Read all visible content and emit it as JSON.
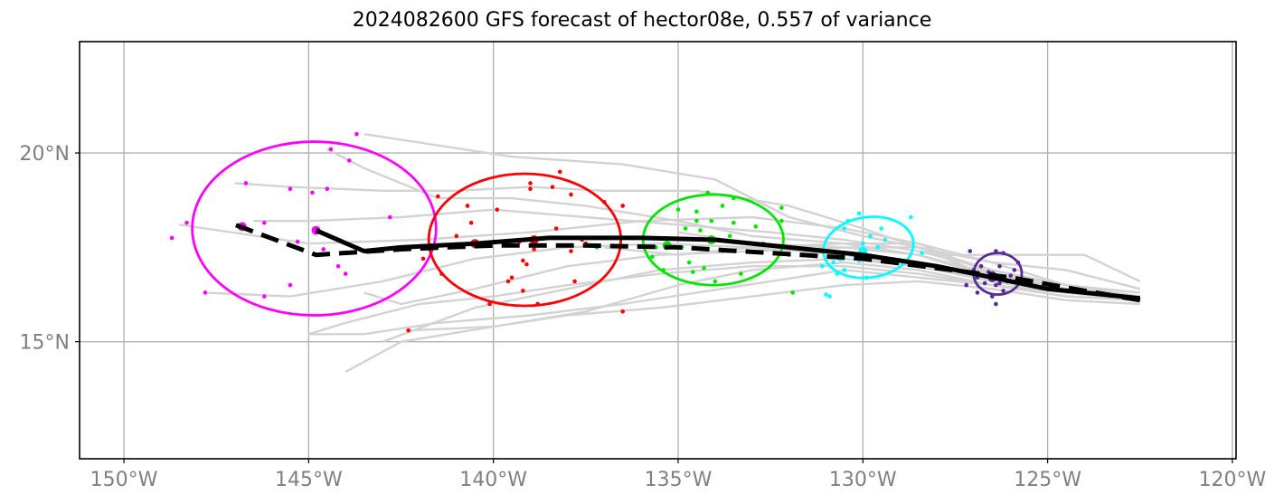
{
  "chart_data": {
    "type": "scatter",
    "title": "2024082600 GFS forecast of hector08e, 0.557 of variance",
    "xlim": [
      -151.2,
      -119.9
    ],
    "ylim": [
      11.9,
      22.95
    ],
    "xticks": [
      -150,
      -145,
      -140,
      -135,
      -130,
      -125,
      -120
    ],
    "xtick_labels": [
      "150°W",
      "145°W",
      "140°W",
      "135°W",
      "130°W",
      "125°W",
      "120°W"
    ],
    "yticks": [
      15,
      20
    ],
    "ytick_labels": [
      "15°N",
      "20°N"
    ],
    "grid": true,
    "colors": {
      "ensemble": "#d3d3d3",
      "magenta": "#ff00ff",
      "red": "#ff0000",
      "green": "#00e600",
      "cyan": "#00ffff",
      "purple": "#5b2a9a",
      "track": "#000000"
    },
    "ensemble_tracks": [
      [
        [
          -122.5,
          16.2
        ],
        [
          -124.5,
          16.3
        ],
        [
          -126.5,
          16.8
        ],
        [
          -128.5,
          17.6
        ],
        [
          -130.5,
          18.0
        ],
        [
          -133.0,
          18.3
        ],
        [
          -136.0,
          18.2
        ],
        [
          -139.0,
          17.9
        ],
        [
          -142.0,
          17.7
        ],
        [
          -145.0,
          17.6
        ],
        [
          -148.5,
          18.1
        ]
      ],
      [
        [
          -122.5,
          16.1
        ],
        [
          -124.5,
          16.4
        ],
        [
          -126.5,
          16.9
        ],
        [
          -128.5,
          17.5
        ],
        [
          -130.0,
          18.0
        ],
        [
          -132.0,
          18.6
        ],
        [
          -134.5,
          19.0
        ],
        [
          -137.0,
          19.0
        ],
        [
          -139.0,
          19.1
        ],
        [
          -141.0,
          19.0
        ],
        [
          -143.0,
          19.0
        ],
        [
          -145.5,
          19.1
        ],
        [
          -147.0,
          19.2
        ]
      ],
      [
        [
          -122.5,
          16.2
        ],
        [
          -124.5,
          16.4
        ],
        [
          -126.5,
          16.7
        ],
        [
          -128.5,
          17.3
        ],
        [
          -130.5,
          17.6
        ],
        [
          -133.0,
          17.8
        ],
        [
          -135.0,
          18.2
        ],
        [
          -137.5,
          18.6
        ],
        [
          -139.5,
          18.8
        ],
        [
          -141.5,
          18.8
        ],
        [
          -143.5,
          19.6
        ],
        [
          -144.5,
          20.1
        ]
      ],
      [
        [
          -122.5,
          16.2
        ],
        [
          -124.5,
          16.3
        ],
        [
          -126.5,
          16.7
        ],
        [
          -128.5,
          17.5
        ],
        [
          -130.0,
          17.8
        ],
        [
          -132.0,
          18.3
        ],
        [
          -134.0,
          19.3
        ],
        [
          -136.5,
          19.7
        ],
        [
          -139.5,
          19.9
        ],
        [
          -141.5,
          20.2
        ],
        [
          -143.5,
          20.5
        ]
      ],
      [
        [
          -122.5,
          16.2
        ],
        [
          -124.5,
          16.3
        ],
        [
          -126.5,
          16.6
        ],
        [
          -128.5,
          17.0
        ],
        [
          -130.5,
          17.3
        ],
        [
          -133.0,
          17.5
        ],
        [
          -135.5,
          17.6
        ],
        [
          -138.0,
          17.5
        ],
        [
          -140.5,
          17.2
        ],
        [
          -143.0,
          16.6
        ],
        [
          -145.5,
          16.2
        ],
        [
          -147.8,
          16.3
        ]
      ],
      [
        [
          -122.5,
          16.1
        ],
        [
          -124.5,
          16.3
        ],
        [
          -126.5,
          16.5
        ],
        [
          -128.5,
          16.8
        ],
        [
          -130.5,
          17.0
        ],
        [
          -133.0,
          17.0
        ],
        [
          -135.5,
          16.8
        ],
        [
          -138.0,
          16.5
        ],
        [
          -140.0,
          16.2
        ],
        [
          -142.0,
          16.0
        ],
        [
          -144.0,
          15.5
        ],
        [
          -145.0,
          15.2
        ]
      ],
      [
        [
          -122.5,
          16.0
        ],
        [
          -124.5,
          16.1
        ],
        [
          -126.5,
          16.4
        ],
        [
          -128.5,
          16.6
        ],
        [
          -130.5,
          16.5
        ],
        [
          -133.0,
          16.2
        ],
        [
          -135.5,
          15.9
        ],
        [
          -138.0,
          15.7
        ],
        [
          -140.0,
          15.4
        ],
        [
          -142.3,
          15.3
        ]
      ],
      [
        [
          -122.5,
          16.1
        ],
        [
          -124.5,
          16.2
        ],
        [
          -126.5,
          16.5
        ],
        [
          -128.5,
          16.9
        ],
        [
          -130.5,
          17.1
        ],
        [
          -133.0,
          16.9
        ],
        [
          -135.0,
          16.5
        ],
        [
          -137.5,
          15.8
        ],
        [
          -140.0,
          15.4
        ],
        [
          -142.5,
          15.0
        ],
        [
          -144.0,
          14.2
        ]
      ],
      [
        [
          -122.5,
          16.1
        ],
        [
          -124.5,
          16.3
        ],
        [
          -126.5,
          16.6
        ],
        [
          -128.5,
          17.0
        ],
        [
          -130.5,
          17.2
        ],
        [
          -133.0,
          17.1
        ],
        [
          -135.5,
          16.9
        ],
        [
          -138.0,
          16.4
        ],
        [
          -140.5,
          15.9
        ],
        [
          -143.0,
          15.0
        ]
      ],
      [
        [
          -122.5,
          16.2
        ],
        [
          -124.5,
          16.4
        ],
        [
          -126.5,
          16.8
        ],
        [
          -128.5,
          17.3
        ],
        [
          -130.5,
          17.5
        ],
        [
          -133.0,
          17.4
        ],
        [
          -135.5,
          17.3
        ],
        [
          -138.0,
          17.0
        ],
        [
          -140.5,
          16.4
        ],
        [
          -142.5,
          16.0
        ],
        [
          -143.5,
          16.3
        ]
      ],
      [
        [
          -122.5,
          16.1
        ],
        [
          -124.5,
          16.2
        ],
        [
          -126.5,
          16.5
        ],
        [
          -128.5,
          16.7
        ],
        [
          -130.5,
          16.9
        ],
        [
          -132.5,
          16.6
        ],
        [
          -134.5,
          16.3
        ],
        [
          -136.5,
          16.0
        ],
        [
          -139.0,
          15.7
        ],
        [
          -141.5,
          15.5
        ],
        [
          -143.5,
          15.2
        ],
        [
          -145.0,
          15.2
        ]
      ],
      [
        [
          -122.5,
          16.3
        ],
        [
          -124.5,
          16.5
        ],
        [
          -126.5,
          16.9
        ],
        [
          -128.5,
          17.4
        ],
        [
          -130.5,
          17.7
        ],
        [
          -132.5,
          17.9
        ],
        [
          -135.0,
          18.1
        ],
        [
          -137.5,
          18.3
        ],
        [
          -140.0,
          18.5
        ],
        [
          -142.5,
          18.3
        ],
        [
          -145.0,
          18.2
        ],
        [
          -146.5,
          18.2
        ]
      ],
      [
        [
          -122.5,
          16.6
        ],
        [
          -124.0,
          17.3
        ],
        [
          -126.5,
          17.3
        ],
        [
          -128.0,
          17.3
        ]
      ],
      [
        [
          -122.5,
          16.4
        ],
        [
          -124.5,
          16.9
        ],
        [
          -126.5,
          17.1
        ],
        [
          -128.5,
          17.5
        ],
        [
          -130.5,
          17.5
        ],
        [
          -133.0,
          17.6
        ],
        [
          -135.0,
          17.9
        ]
      ],
      [
        [
          -122.5,
          16.2
        ],
        [
          -124.5,
          16.5
        ],
        [
          -126.5,
          17.1
        ],
        [
          -128.5,
          17.6
        ],
        [
          -130.5,
          17.6
        ],
        [
          -133.0,
          17.5
        ],
        [
          -135.0,
          17.3
        ],
        [
          -137.0,
          17.5
        ]
      ]
    ],
    "forecast_track": [
      [
        -122.5,
        16.15
      ],
      [
        -124.0,
        16.3
      ],
      [
        -125.0,
        16.4
      ],
      [
        -126.5,
        16.7
      ],
      [
        -128.0,
        17.0
      ],
      [
        -130.0,
        17.3
      ],
      [
        -132.0,
        17.5
      ],
      [
        -134.0,
        17.7
      ],
      [
        -136.0,
        17.75
      ],
      [
        -138.5,
        17.75
      ],
      [
        -140.5,
        17.6
      ],
      [
        -142.5,
        17.5
      ],
      [
        -143.5,
        17.4
      ],
      [
        -144.8,
        17.95
      ]
    ],
    "consensus_track": [
      [
        -122.5,
        16.1
      ],
      [
        -124.0,
        16.35
      ],
      [
        -126.0,
        16.7
      ],
      [
        -128.0,
        16.95
      ],
      [
        -130.0,
        17.2
      ],
      [
        -132.5,
        17.35
      ],
      [
        -135.0,
        17.5
      ],
      [
        -137.5,
        17.55
      ],
      [
        -140.0,
        17.55
      ],
      [
        -142.5,
        17.45
      ],
      [
        -144.8,
        17.3
      ],
      [
        -147.0,
        18.1
      ]
    ],
    "clusters": [
      {
        "color": "magenta",
        "center": [
          -144.85,
          18.0
        ],
        "radii": [
          6.6,
          2.3
        ],
        "mean": [
          -146.8,
          18.05
        ],
        "current": [
          -144.8,
          17.95
        ],
        "points": [
          [
            -143.7,
            20.5
          ],
          [
            -144.4,
            20.1
          ],
          [
            -143.9,
            19.8
          ],
          [
            -146.7,
            19.2
          ],
          [
            -145.5,
            19.05
          ],
          [
            -144.9,
            18.95
          ],
          [
            -144.5,
            19.05
          ],
          [
            -142.8,
            18.3
          ],
          [
            -148.3,
            18.15
          ],
          [
            -146.2,
            18.15
          ],
          [
            -148.7,
            17.75
          ],
          [
            -145.3,
            17.65
          ],
          [
            -144.6,
            17.45
          ],
          [
            -144.2,
            17.0
          ],
          [
            -144.0,
            16.8
          ],
          [
            -145.5,
            16.5
          ],
          [
            -147.8,
            16.3
          ],
          [
            -146.2,
            16.2
          ]
        ]
      },
      {
        "color": "red",
        "center": [
          -139.15,
          17.7
        ],
        "radii": [
          5.2,
          1.75
        ],
        "mean": [
          -138.9,
          17.7
        ],
        "current": [
          -140.5,
          17.6
        ],
        "points": [
          [
            -138.2,
            19.5
          ],
          [
            -139.0,
            19.2
          ],
          [
            -139.0,
            19.05
          ],
          [
            -138.4,
            19.1
          ],
          [
            -137.9,
            18.9
          ],
          [
            -141.5,
            18.85
          ],
          [
            -140.7,
            18.6
          ],
          [
            -139.9,
            18.5
          ],
          [
            -137.0,
            18.7
          ],
          [
            -136.5,
            18.6
          ],
          [
            -140.6,
            18.15
          ],
          [
            -138.3,
            18.0
          ],
          [
            -137.6,
            17.7
          ],
          [
            -138.9,
            17.45
          ],
          [
            -139.3,
            17.65
          ],
          [
            -137.9,
            17.4
          ],
          [
            -141.9,
            17.2
          ],
          [
            -139.2,
            17.15
          ],
          [
            -139.1,
            17.05
          ],
          [
            -141.4,
            16.8
          ],
          [
            -139.5,
            16.7
          ],
          [
            -139.6,
            16.6
          ],
          [
            -137.8,
            16.6
          ],
          [
            -139.2,
            16.35
          ],
          [
            -140.1,
            16.0
          ],
          [
            -138.8,
            16.0
          ],
          [
            -141.0,
            17.8
          ],
          [
            -136.5,
            15.8
          ],
          [
            -142.3,
            15.3
          ],
          [
            -137.5,
            17.6
          ]
        ],
        "centroid": [
          -139.0,
          17.65
        ]
      },
      {
        "color": "green",
        "center": [
          -134.05,
          17.7
        ],
        "radii": [
          3.8,
          1.2
        ],
        "mean": [
          -135.3,
          17.55
        ],
        "current": [
          -134.1,
          17.7
        ],
        "points": [
          [
            -134.2,
            18.95
          ],
          [
            -133.5,
            18.8
          ],
          [
            -132.2,
            18.55
          ],
          [
            -133.8,
            18.6
          ],
          [
            -135.0,
            18.5
          ],
          [
            -134.5,
            18.45
          ],
          [
            -134.5,
            18.2
          ],
          [
            -134.1,
            18.2
          ],
          [
            -133.5,
            18.15
          ],
          [
            -132.9,
            18.05
          ],
          [
            -134.8,
            18.0
          ],
          [
            -134.4,
            17.95
          ],
          [
            -132.2,
            18.2
          ],
          [
            -133.6,
            17.8
          ],
          [
            -132.7,
            17.6
          ],
          [
            -135.6,
            17.5
          ],
          [
            -134.9,
            17.5
          ],
          [
            -133.8,
            17.4
          ],
          [
            -135.7,
            17.25
          ],
          [
            -134.7,
            17.1
          ],
          [
            -134.3,
            16.95
          ],
          [
            -134.6,
            16.85
          ],
          [
            -135.4,
            16.9
          ],
          [
            -133.3,
            16.8
          ],
          [
            -134.0,
            16.6
          ],
          [
            -137.2,
            17.5
          ],
          [
            -131.9,
            16.3
          ]
        ],
        "centroid": [
          -135.3,
          17.55
        ]
      },
      {
        "color": "cyan",
        "center": [
          -129.85,
          17.5
        ],
        "radii": [
          2.45,
          0.8
        ],
        "mean": [
          -130.6,
          17.25
        ],
        "current": [
          -130.0,
          17.4
        ],
        "points": [
          [
            -130.1,
            18.4
          ],
          [
            -128.7,
            18.3
          ],
          [
            -130.4,
            18.2
          ],
          [
            -130.5,
            18.0
          ],
          [
            -129.5,
            18.0
          ],
          [
            -129.4,
            17.7
          ],
          [
            -129.8,
            17.8
          ],
          [
            -130.0,
            17.6
          ],
          [
            -129.6,
            17.5
          ],
          [
            -130.3,
            17.3
          ],
          [
            -130.1,
            17.15
          ],
          [
            -130.8,
            17.1
          ],
          [
            -131.1,
            17.0
          ],
          [
            -130.7,
            16.8
          ],
          [
            -129.9,
            16.7
          ],
          [
            -130.5,
            16.9
          ],
          [
            -128.4,
            17.35
          ],
          [
            -130.9,
            16.2
          ],
          [
            -131.0,
            16.25
          ],
          [
            -132.0,
            17.3
          ]
        ],
        "centroid": [
          -130.6,
          17.25
        ]
      },
      {
        "color": "purple",
        "center": [
          -126.35,
          16.8
        ],
        "radii": [
          1.3,
          0.55
        ],
        "mean": [
          -126.5,
          16.75
        ],
        "current": [
          -126.5,
          16.7
        ],
        "points": [
          [
            -127.1,
            17.4
          ],
          [
            -126.4,
            17.4
          ],
          [
            -126.2,
            17.35
          ],
          [
            -126.8,
            17.0
          ],
          [
            -126.3,
            17.0
          ],
          [
            -125.9,
            16.9
          ],
          [
            -126.6,
            16.85
          ],
          [
            -126.0,
            16.75
          ],
          [
            -126.9,
            16.7
          ],
          [
            -126.1,
            16.6
          ],
          [
            -126.7,
            16.55
          ],
          [
            -127.2,
            16.5
          ],
          [
            -126.4,
            16.5
          ],
          [
            -126.2,
            16.35
          ],
          [
            -126.9,
            16.3
          ],
          [
            -126.5,
            16.2
          ],
          [
            -126.4,
            16.0
          ],
          [
            -127.0,
            16.9
          ],
          [
            -125.8,
            17.1
          ],
          [
            -126.3,
            16.55
          ]
        ],
        "centroid": [
          -126.5,
          16.75
        ]
      }
    ]
  }
}
